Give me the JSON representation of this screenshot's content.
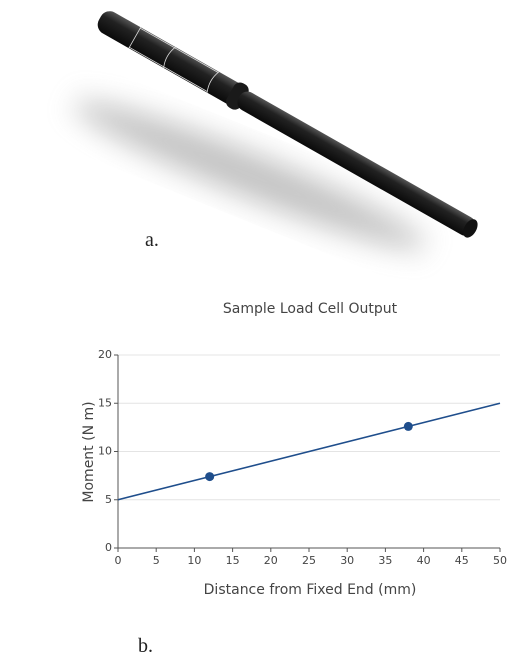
{
  "panel_labels": [
    "a.",
    "b."
  ],
  "chart_data": {
    "type": "line",
    "title": "Sample Load Cell Output",
    "x_label": "Distance from Fixed End (mm)",
    "y_label": "Moment (N m)",
    "xlim": [
      0,
      50
    ],
    "ylim": [
      0,
      20
    ],
    "xticks": [
      0,
      5,
      10,
      15,
      20,
      25,
      30,
      35,
      40,
      45,
      50
    ],
    "yticks": [
      0,
      5,
      10,
      15,
      20
    ],
    "grid": true,
    "series": [
      {
        "color": "#1f4e8c",
        "x": [
          0,
          50
        ],
        "values": [
          5,
          15
        ],
        "marker": false
      },
      {
        "color": "#1f4e8c",
        "x": [
          12,
          38
        ],
        "values": [
          7.4,
          12.6
        ],
        "marker": true
      }
    ]
  }
}
